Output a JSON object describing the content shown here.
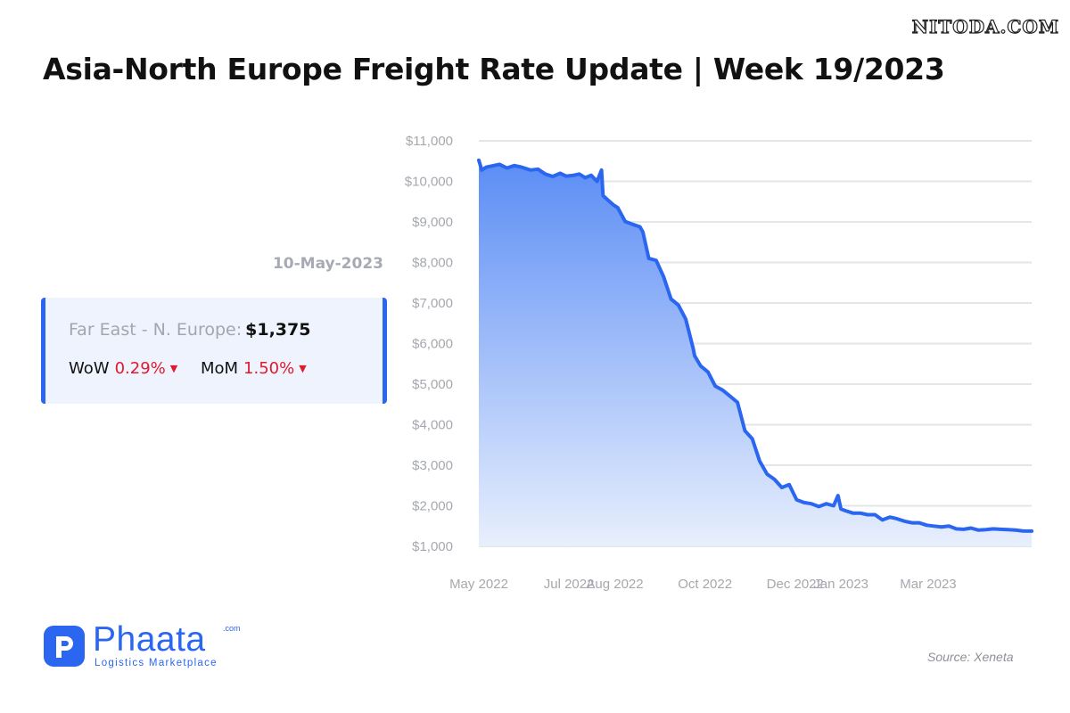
{
  "watermark": "NITODA.COM",
  "title": "Asia-North Europe Freight Rate Update | Week 19/2023",
  "rate_card": {
    "date": "10-May-2023",
    "route_label": "Far East - N. Europe:",
    "price": "$1,375",
    "wow_label": "WoW",
    "wow_value": "0.29%",
    "mom_label": "MoM",
    "mom_value": "1.50%",
    "change_direction_icon": "caret-down-icon",
    "change_color": "#e0192b"
  },
  "chart_data": {
    "type": "area",
    "title": "",
    "xlabel": "",
    "ylabel": "",
    "ylim": [
      1000,
      11000
    ],
    "yticks": [
      1000,
      2000,
      3000,
      4000,
      5000,
      6000,
      7000,
      8000,
      9000,
      10000,
      11000
    ],
    "ytick_labels": [
      "$1,000",
      "$2,000",
      "$3,000",
      "$4,000",
      "$5,000",
      "$6,000",
      "$7,000",
      "$8,000",
      "$9,000",
      "$10,000",
      "$11,000"
    ],
    "xlim": [
      "2022-05-01",
      "2023-05-10"
    ],
    "xticks": [
      "2022-05-01",
      "2022-07-01",
      "2022-08-01",
      "2022-10-01",
      "2022-12-01",
      "2023-01-01",
      "2023-03-01"
    ],
    "xtick_labels": [
      "May 2022",
      "Jul 2022",
      "Aug 2022",
      "Oct 2022",
      "Dec 2022",
      "Jan 2023",
      "Mar 2023"
    ],
    "grid": true,
    "line_color": "#2b66f0",
    "fill_top_color": "#5b8df5",
    "fill_bottom_color": "#e8effd",
    "x": [
      "2022-05-01",
      "2022-05-03",
      "2022-05-06",
      "2022-05-10",
      "2022-05-15",
      "2022-05-20",
      "2022-05-25",
      "2022-05-30",
      "2022-06-05",
      "2022-06-10",
      "2022-06-15",
      "2022-06-20",
      "2022-06-25",
      "2022-06-29",
      "2022-07-04",
      "2022-07-08",
      "2022-07-12",
      "2022-07-16",
      "2022-07-20",
      "2022-07-23",
      "2022-07-24",
      "2022-07-27",
      "2022-07-31",
      "2022-08-03",
      "2022-08-08",
      "2022-08-13",
      "2022-08-18",
      "2022-08-20",
      "2022-08-24",
      "2022-08-29",
      "2022-09-03",
      "2022-09-08",
      "2022-09-13",
      "2022-09-18",
      "2022-09-23",
      "2022-09-24",
      "2022-09-28",
      "2022-10-03",
      "2022-10-08",
      "2022-10-13",
      "2022-10-18",
      "2022-10-23",
      "2022-10-28",
      "2022-11-02",
      "2022-11-07",
      "2022-11-12",
      "2022-11-17",
      "2022-11-22",
      "2022-11-27",
      "2022-12-02",
      "2022-12-07",
      "2022-12-12",
      "2022-12-17",
      "2022-12-22",
      "2022-12-27",
      "2022-12-30",
      "2023-01-01",
      "2023-01-04",
      "2023-01-09",
      "2023-01-14",
      "2023-01-19",
      "2023-01-24",
      "2023-01-29",
      "2023-02-03",
      "2023-02-08",
      "2023-02-13",
      "2023-02-18",
      "2023-02-23",
      "2023-02-28",
      "2023-03-05",
      "2023-03-10",
      "2023-03-15",
      "2023-03-20",
      "2023-03-25",
      "2023-03-30",
      "2023-04-04",
      "2023-04-09",
      "2023-04-14",
      "2023-04-19",
      "2023-04-24",
      "2023-04-29",
      "2023-05-04",
      "2023-05-10"
    ],
    "series": [
      {
        "values": [
          10520,
          10280,
          10350,
          10380,
          10420,
          10330,
          10390,
          10350,
          10280,
          10300,
          10180,
          10120,
          10200,
          10130,
          10150,
          10180,
          10090,
          10150,
          10000,
          10280,
          9650,
          9550,
          9420,
          9350,
          9010,
          8940,
          8880,
          8750,
          8100,
          8050,
          7650,
          7100,
          6950,
          6600,
          5880,
          5700,
          5450,
          5300,
          4950,
          4850,
          4700,
          4550,
          3850,
          3650,
          3100,
          2780,
          2650,
          2450,
          2520,
          2150,
          2080,
          2050,
          1980,
          2050,
          2000,
          2250,
          1920,
          1880,
          1820,
          1820,
          1780,
          1780,
          1650,
          1720,
          1680,
          1620,
          1580,
          1580,
          1520,
          1500,
          1480,
          1500,
          1430,
          1420,
          1450,
          1400,
          1410,
          1430,
          1420,
          1410,
          1400,
          1380,
          1375
        ]
      }
    ]
  },
  "source": "Source: Xeneta",
  "logo": {
    "mark_letter": "P",
    "name": "Phaata",
    "domain_suffix": ".com",
    "tagline": "Logistics Marketplace",
    "brand_color": "#2b66f0"
  }
}
